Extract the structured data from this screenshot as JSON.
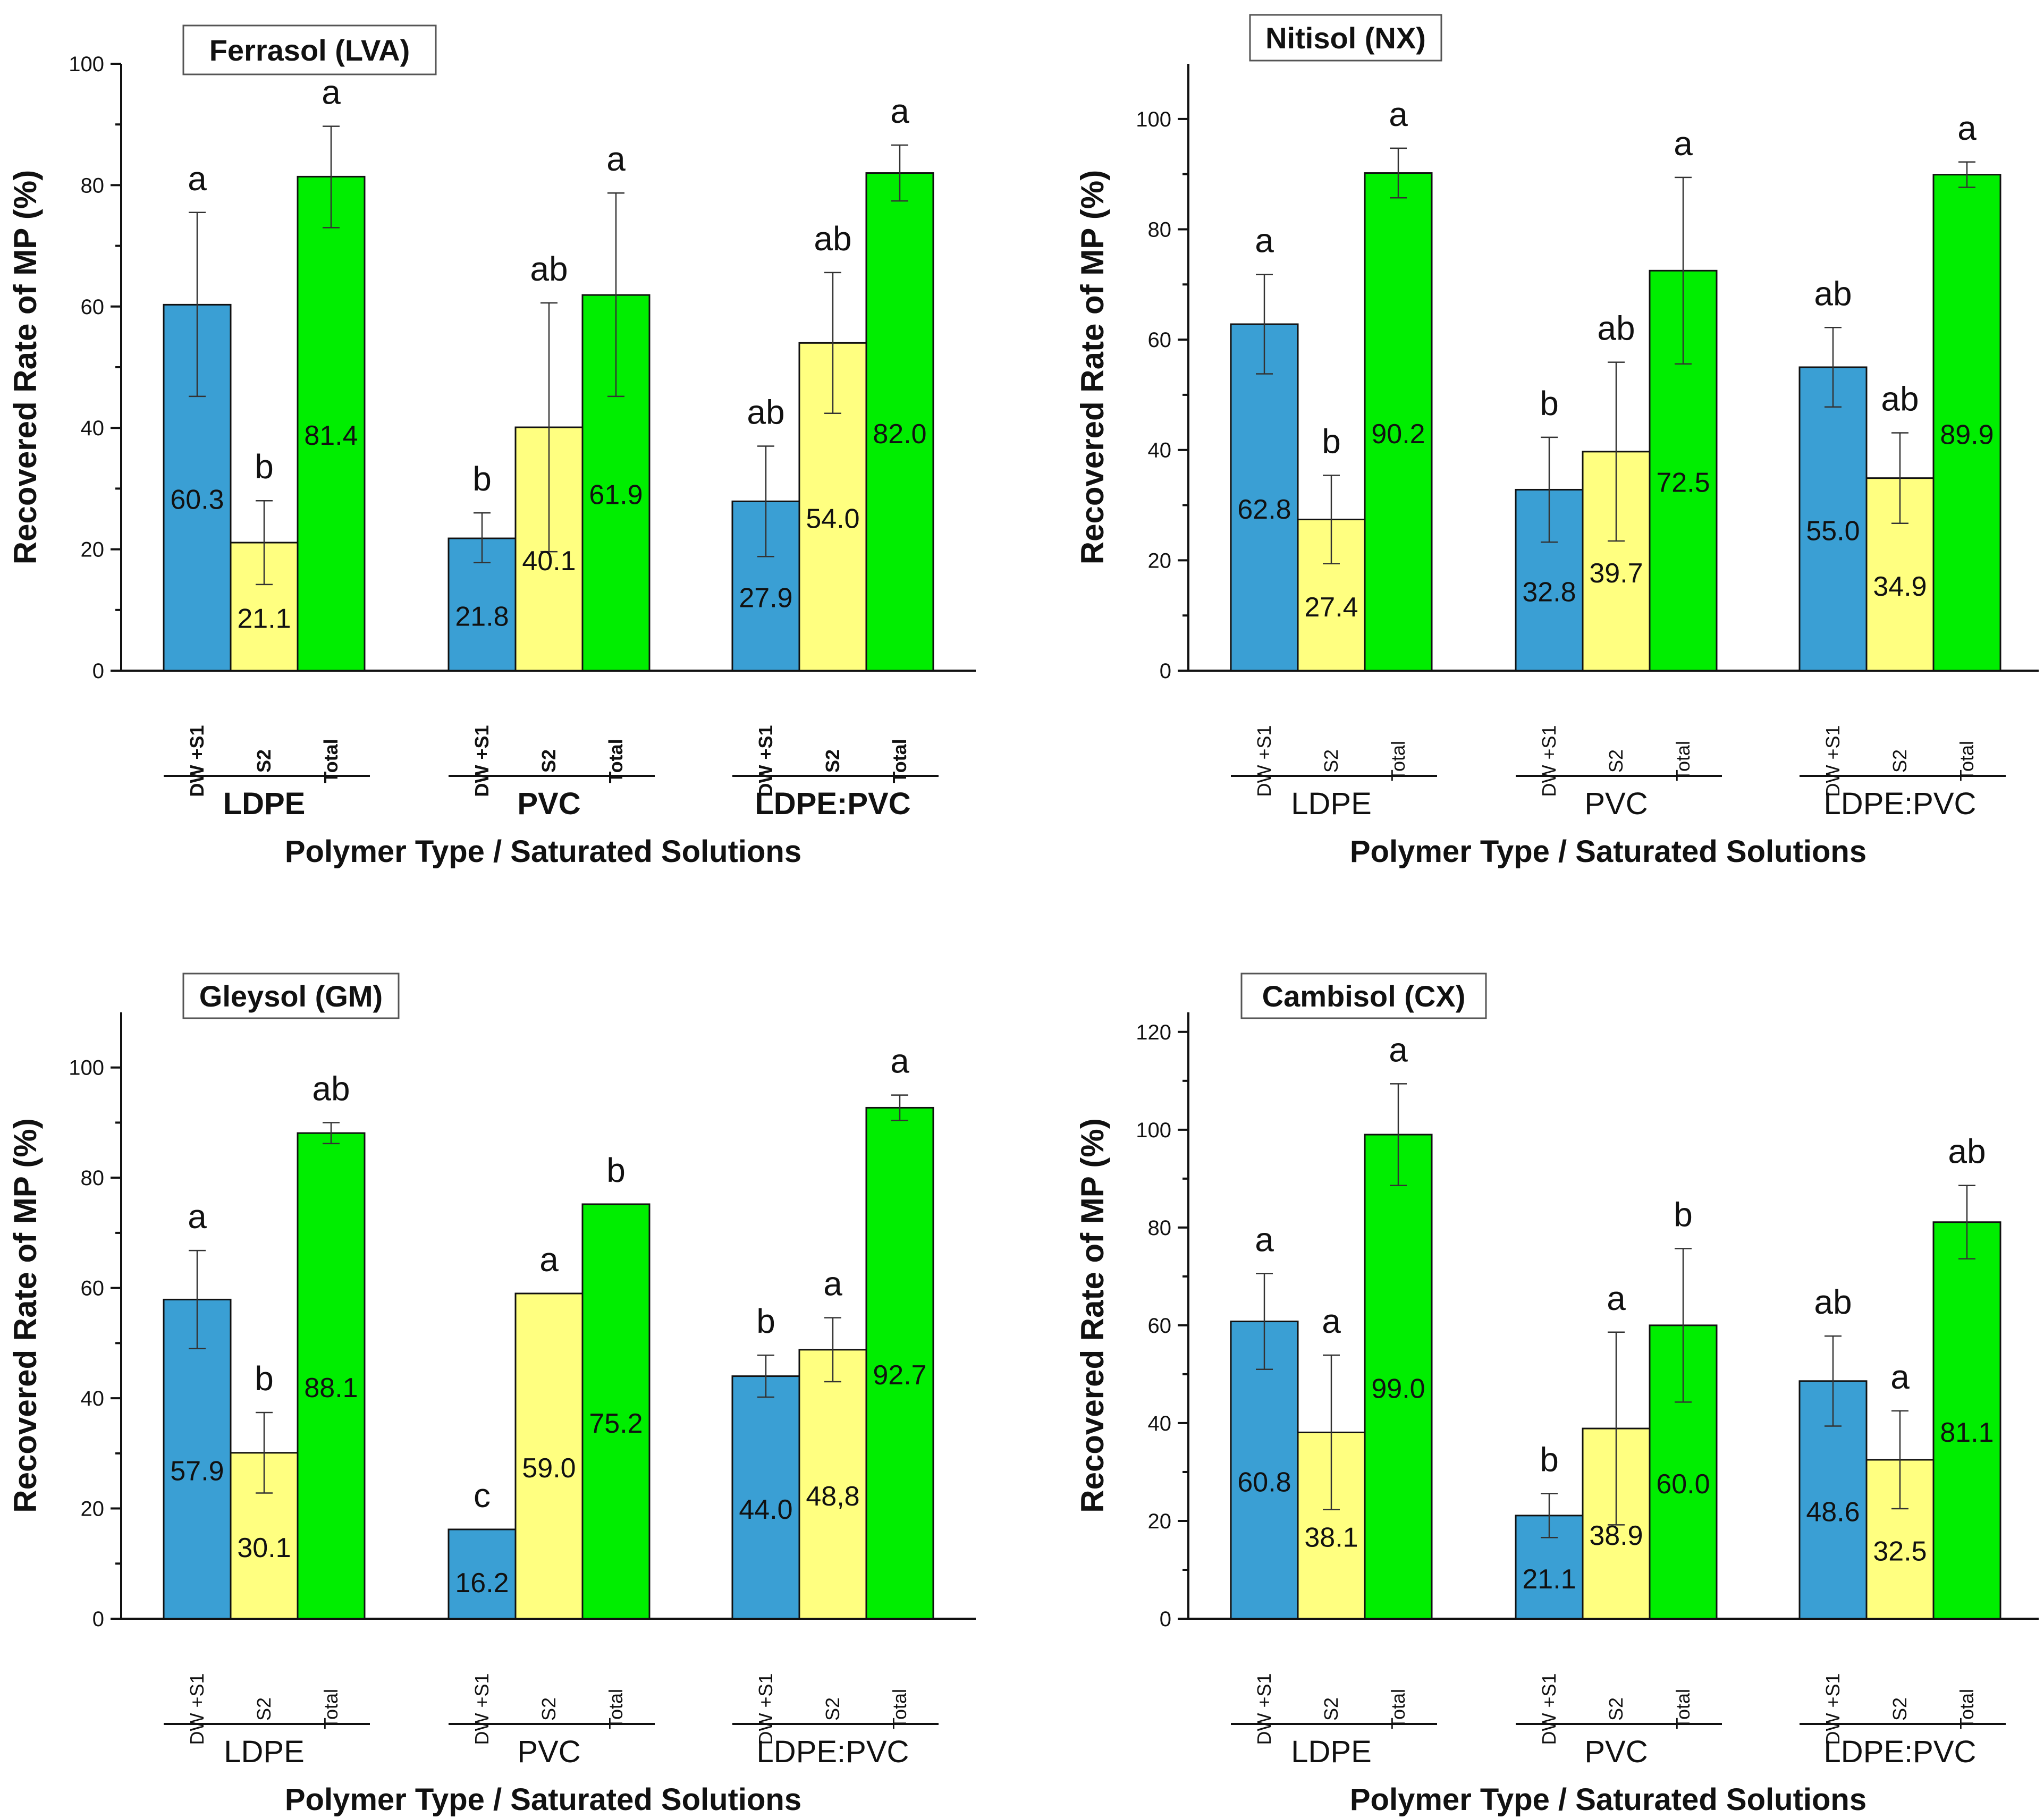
{
  "colors": {
    "dw_s1": "#3a9fd4",
    "s2": "#ffff80",
    "total": "#00ee00"
  },
  "chart_data": [
    {
      "type": "bar",
      "title": "Ferrasol (LVA)",
      "xlabel": "Polymer Type / Saturated Solutions",
      "ylabel": "Recovered Rate of MP (%)",
      "ylim": [
        0,
        100
      ],
      "yticks": [
        0,
        20,
        40,
        60,
        80,
        100
      ],
      "bold_categories": true,
      "groups": [
        {
          "name": "LDPE",
          "bars": [
            {
              "category": "DW +S1",
              "value": 60.3,
              "label": "60.3",
              "err": [
                45.2,
                75.5
              ],
              "letter": "a"
            },
            {
              "category": "S2",
              "value": 21.1,
              "label": "21.1",
              "err": [
                14.2,
                28.0
              ],
              "letter": "b"
            },
            {
              "category": "Total",
              "value": 81.4,
              "label": "81.4",
              "err": [
                73.0,
                89.7
              ],
              "letter": "a"
            }
          ]
        },
        {
          "name": "PVC",
          "bars": [
            {
              "category": "DW +S1",
              "value": 21.8,
              "label": "21.8",
              "err": [
                17.8,
                26.0
              ],
              "letter": "b"
            },
            {
              "category": "S2",
              "value": 40.1,
              "label": "40.1",
              "err": [
                19.6,
                60.6
              ],
              "letter": "ab"
            },
            {
              "category": "Total",
              "value": 61.9,
              "label": "61.9",
              "err": [
                45.2,
                78.7
              ],
              "letter": "a"
            }
          ]
        },
        {
          "name": "LDPE:PVC",
          "bars": [
            {
              "category": "DW +S1",
              "value": 27.9,
              "label": "27.9",
              "err": [
                18.8,
                37.0
              ],
              "letter": "ab"
            },
            {
              "category": "S2",
              "value": 54.0,
              "label": "54.0",
              "err": [
                42.4,
                65.6
              ],
              "letter": "ab"
            },
            {
              "category": "Total",
              "value": 82.0,
              "label": "82.0",
              "err": [
                77.4,
                86.6
              ],
              "letter": "a"
            }
          ]
        }
      ]
    },
    {
      "type": "bar",
      "title": "Nitisol (NX)",
      "xlabel": "Polymer Type / Saturated Solutions",
      "ylabel": "Recovered Rate of MP (%)",
      "ylim": [
        0,
        110
      ],
      "yticks": [
        0,
        20,
        40,
        60,
        80,
        100
      ],
      "bold_categories": false,
      "groups": [
        {
          "name": "LDPE",
          "bars": [
            {
              "category": "DW +S1",
              "value": 62.8,
              "label": "62.8",
              "err": [
                53.8,
                71.8
              ],
              "letter": "a"
            },
            {
              "category": "S2",
              "value": 27.4,
              "label": "27.4",
              "err": [
                19.4,
                35.4
              ],
              "letter": "b"
            },
            {
              "category": "Total",
              "value": 90.2,
              "label": "90.2",
              "err": [
                85.7,
                94.7
              ],
              "letter": "a"
            }
          ]
        },
        {
          "name": "PVC",
          "bars": [
            {
              "category": "DW +S1",
              "value": 32.8,
              "label": "32.8",
              "err": [
                23.3,
                42.3
              ],
              "letter": "b"
            },
            {
              "category": "S2",
              "value": 39.7,
              "label": "39.7",
              "err": [
                23.5,
                55.9
              ],
              "letter": "ab"
            },
            {
              "category": "Total",
              "value": 72.5,
              "label": "72.5",
              "err": [
                55.6,
                89.4
              ],
              "letter": "a"
            }
          ]
        },
        {
          "name": "LDPE:PVC",
          "bars": [
            {
              "category": "DW +S1",
              "value": 55.0,
              "label": "55.0",
              "err": [
                47.8,
                62.2
              ],
              "letter": "ab"
            },
            {
              "category": "S2",
              "value": 34.9,
              "label": "34.9",
              "err": [
                26.7,
                43.1
              ],
              "letter": "ab"
            },
            {
              "category": "Total",
              "value": 89.9,
              "label": "89.9",
              "err": [
                87.6,
                92.2
              ],
              "letter": "a"
            }
          ]
        }
      ]
    },
    {
      "type": "bar",
      "title": "Gleysol (GM)",
      "xlabel": "Polymer Type / Saturated Solutions",
      "ylabel": "Recovered Rate of MP (%)",
      "ylim": [
        0,
        110
      ],
      "yticks": [
        0,
        20,
        40,
        60,
        80,
        100
      ],
      "bold_categories": false,
      "groups": [
        {
          "name": "LDPE",
          "bars": [
            {
              "category": "DW +S1",
              "value": 57.9,
              "label": "57.9",
              "err": [
                49.0,
                66.8
              ],
              "letter": "a"
            },
            {
              "category": "S2",
              "value": 30.1,
              "label": "30.1",
              "err": [
                22.8,
                37.4
              ],
              "letter": "b"
            },
            {
              "category": "Total",
              "value": 88.1,
              "label": "88.1",
              "err": [
                86.2,
                90.0
              ],
              "letter": "ab"
            }
          ]
        },
        {
          "name": "PVC",
          "bars": [
            {
              "category": "DW +S1",
              "value": 16.2,
              "label": "16.2",
              "err": null,
              "letter": "c"
            },
            {
              "category": "S2",
              "value": 59.0,
              "label": "59.0",
              "err": null,
              "letter": "a"
            },
            {
              "category": "Total",
              "value": 75.2,
              "label": "75.2",
              "err": null,
              "letter": "b"
            }
          ]
        },
        {
          "name": "LDPE:PVC",
          "bars": [
            {
              "category": "DW +S1",
              "value": 44.0,
              "label": "44.0",
              "err": [
                40.2,
                47.8
              ],
              "letter": "b"
            },
            {
              "category": "S2",
              "value": 48.8,
              "label": "48,8",
              "err": [
                43.0,
                54.6
              ],
              "letter": "a"
            },
            {
              "category": "Total",
              "value": 92.7,
              "label": "92.7",
              "err": [
                90.4,
                95.0
              ],
              "letter": "a"
            }
          ]
        }
      ]
    },
    {
      "type": "bar",
      "title": "Cambisol (CX)",
      "xlabel": "Polymer Type / Saturated Solutions",
      "ylabel": "Recovered Rate of MP (%)",
      "ylim": [
        0,
        124
      ],
      "yticks": [
        0,
        20,
        40,
        60,
        80,
        100,
        120
      ],
      "bold_categories": false,
      "groups": [
        {
          "name": "LDPE",
          "bars": [
            {
              "category": "DW +S1",
              "value": 60.8,
              "label": "60.8",
              "err": [
                51.0,
                70.6
              ],
              "letter": "a"
            },
            {
              "category": "S2",
              "value": 38.1,
              "label": "38.1",
              "err": [
                22.3,
                53.9
              ],
              "letter": "a"
            },
            {
              "category": "Total",
              "value": 99.0,
              "label": "99.0",
              "err": [
                88.6,
                109.4
              ],
              "letter": "a"
            }
          ]
        },
        {
          "name": "PVC",
          "bars": [
            {
              "category": "DW +S1",
              "value": 21.1,
              "label": "21.1",
              "err": [
                16.6,
                25.6
              ],
              "letter": "b"
            },
            {
              "category": "S2",
              "value": 38.9,
              "label": "38.9",
              "err": [
                19.2,
                58.6
              ],
              "letter": "a"
            },
            {
              "category": "Total",
              "value": 60.0,
              "label": "60.0",
              "err": [
                44.3,
                75.7
              ],
              "letter": "b"
            }
          ]
        },
        {
          "name": "LDPE:PVC",
          "bars": [
            {
              "category": "DW +S1",
              "value": 48.6,
              "label": "48.6",
              "err": [
                39.4,
                57.8
              ],
              "letter": "ab"
            },
            {
              "category": "S2",
              "value": 32.5,
              "label": "32.5",
              "err": [
                22.5,
                42.5
              ],
              "letter": "a"
            },
            {
              "category": "Total",
              "value": 81.1,
              "label": "81.1",
              "err": [
                73.6,
                88.6
              ],
              "letter": "ab"
            }
          ]
        }
      ]
    }
  ]
}
